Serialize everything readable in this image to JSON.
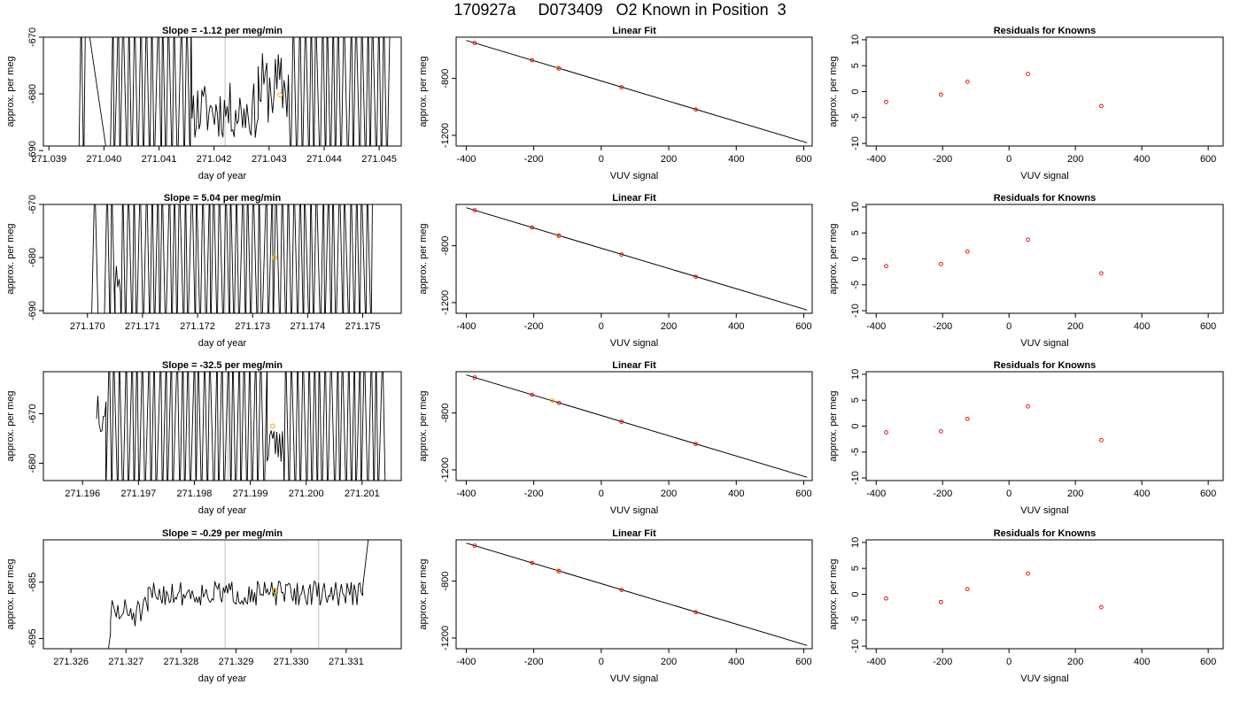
{
  "figure": {
    "title": "170927a     D073409   O2 Known in Position  3",
    "colors": {
      "trace": "#000000",
      "known_marker": "#ffa500",
      "residual_marker": "#dd0000",
      "axis": "#000000",
      "vline": "#bebebe"
    }
  },
  "chart_data": [
    {
      "type": "line",
      "row": 1,
      "col": 1,
      "title": "Slope =  -1.12  per meg/min",
      "xlabel": "day of year",
      "ylabel": "approx. per meg",
      "xlim": [
        271.0389,
        271.0454
      ],
      "ylim": [
        -689.2,
        -670
      ],
      "xticks": [
        271.039,
        271.04,
        271.041,
        271.042,
        271.043,
        271.044,
        271.045
      ],
      "xtick_labels": [
        "271.039",
        "271.040",
        "271.041",
        "271.042",
        "271.043",
        "271.044",
        "271.045"
      ],
      "yticks": [
        -670,
        -680,
        -690
      ],
      "ytick_labels": [
        "-670",
        "-680",
        "-690"
      ],
      "vlines": [
        271.0422
      ],
      "marker": {
        "x": 271.0432,
        "y": -680.2
      },
      "trace_seed": 11,
      "trace_segments": [
        {
          "x0": 271.03955,
          "x1": 271.03968,
          "mode": "spikes"
        },
        {
          "x0": 271.0401,
          "x1": 271.0416,
          "mode": "spikes"
        },
        {
          "x0": 271.0416,
          "x1": 271.0428,
          "mode": "wiggle",
          "base": -683.0,
          "amp": 5.0
        },
        {
          "x0": 271.0428,
          "x1": 271.04335,
          "mode": "wiggle",
          "base": -679.0,
          "amp": 6.5
        },
        {
          "x0": 271.0434,
          "x1": 271.0452,
          "mode": "spikes"
        }
      ]
    },
    {
      "type": "line",
      "row": 1,
      "col": 2,
      "title": "Linear Fit",
      "xlabel": "VUV signal",
      "ylabel": "approx. per meg",
      "xlim": [
        -430,
        625
      ],
      "ylim": [
        -1275,
        -510
      ],
      "xticks": [
        -400,
        -200,
        0,
        200,
        400,
        600
      ],
      "xtick_labels": [
        "-400",
        "-200",
        "0",
        "200",
        "400",
        "600"
      ],
      "yticks": [
        -800,
        -1200
      ],
      "ytick_labels": [
        "-800",
        "-1200"
      ],
      "fit_line": {
        "x": [
          -400,
          610
        ],
        "y": [
          -533,
          -1252
        ]
      },
      "points": [
        {
          "x": -375,
          "y": -551
        },
        {
          "x": -205,
          "y": -672
        },
        {
          "x": -125,
          "y": -730
        },
        {
          "x": 60,
          "y": -862
        },
        {
          "x": 280,
          "y": -1018
        }
      ],
      "highlight": {
        "x": -127,
        "y": -728
      }
    },
    {
      "type": "scatter",
      "row": 1,
      "col": 3,
      "title": "Residuals for Knowns",
      "xlabel": "VUV signal",
      "ylabel": "approx. per meg",
      "xlim": [
        -430,
        645
      ],
      "ylim": [
        -10.5,
        10.5
      ],
      "xticks": [
        -400,
        -200,
        0,
        200,
        400,
        600
      ],
      "xtick_labels": [
        "-400",
        "-200",
        "0",
        "200",
        "400",
        "600"
      ],
      "yticks": [
        -10,
        -5,
        0,
        5,
        10
      ],
      "ytick_labels": [
        "-10",
        "-5",
        "0",
        "5",
        "10"
      ],
      "points": [
        {
          "x": -370,
          "y": -2.0
        },
        {
          "x": -205,
          "y": -0.6
        },
        {
          "x": -125,
          "y": 1.9
        },
        {
          "x": 57,
          "y": 3.4
        },
        {
          "x": 278,
          "y": -2.8
        }
      ]
    },
    {
      "type": "line",
      "row": 2,
      "col": 1,
      "title": "Slope =  5.04  per meg/min",
      "xlabel": "day of year",
      "ylabel": "approx. per meg",
      "xlim": [
        271.1692,
        271.1757
      ],
      "ylim": [
        -690.5,
        -670
      ],
      "xticks": [
        271.17,
        271.171,
        271.172,
        271.173,
        271.174,
        271.175
      ],
      "xtick_labels": [
        "271.170",
        "271.171",
        "271.172",
        "271.173",
        "271.174",
        "271.175"
      ],
      "yticks": [
        -670,
        -680,
        -690
      ],
      "ytick_labels": [
        "-670",
        "-680",
        "-690"
      ],
      "vlines": [
        271.1725
      ],
      "marker": {
        "x": 271.1734,
        "y": -680
      },
      "trace_seed": 23,
      "trace_segments": [
        {
          "x0": 271.17008,
          "x1": 271.1702,
          "mode": "spikes"
        },
        {
          "x0": 271.1703,
          "x1": 271.1705,
          "mode": "spikes"
        },
        {
          "x0": 271.1705,
          "x1": 271.1706,
          "mode": "wiggle",
          "base": -684,
          "amp": 3
        },
        {
          "x0": 271.1706,
          "x1": 271.1752,
          "mode": "spikes"
        }
      ]
    },
    {
      "type": "line",
      "row": 2,
      "col": 2,
      "title": "Linear Fit",
      "xlabel": "VUV signal",
      "ylabel": "approx. per meg",
      "xlim": [
        -430,
        625
      ],
      "ylim": [
        -1275,
        -510
      ],
      "xticks": [
        -400,
        -200,
        0,
        200,
        400,
        600
      ],
      "xtick_labels": [
        "-400",
        "-200",
        "0",
        "200",
        "400",
        "600"
      ],
      "yticks": [
        -800,
        -1200
      ],
      "ytick_labels": [
        "-800",
        "-1200"
      ],
      "fit_line": {
        "x": [
          -400,
          610
        ],
        "y": [
          -533,
          -1252
        ]
      },
      "points": [
        {
          "x": -375,
          "y": -551
        },
        {
          "x": -205,
          "y": -672
        },
        {
          "x": -125,
          "y": -730
        },
        {
          "x": 60,
          "y": -862
        },
        {
          "x": 280,
          "y": -1018
        }
      ],
      "highlight": {
        "x": -127,
        "y": -728
      }
    },
    {
      "type": "scatter",
      "row": 2,
      "col": 3,
      "title": "Residuals for Knowns",
      "xlabel": "VUV signal",
      "ylabel": "approx. per meg",
      "xlim": [
        -430,
        645
      ],
      "ylim": [
        -10.5,
        10.5
      ],
      "xticks": [
        -400,
        -200,
        0,
        200,
        400,
        600
      ],
      "xtick_labels": [
        "-400",
        "-200",
        "0",
        "200",
        "400",
        "600"
      ],
      "yticks": [
        -10,
        -5,
        0,
        5,
        10
      ],
      "ytick_labels": [
        "-10",
        "-5",
        "0",
        "5",
        "10"
      ],
      "points": [
        {
          "x": -370,
          "y": -1.4
        },
        {
          "x": -205,
          "y": -1.0
        },
        {
          "x": -125,
          "y": 1.4
        },
        {
          "x": 57,
          "y": 3.7
        },
        {
          "x": 278,
          "y": -2.8
        }
      ]
    },
    {
      "type": "line",
      "row": 3,
      "col": 1,
      "title": "Slope =  -32.5  per meg/min",
      "xlabel": "day of year",
      "ylabel": "approx. per meg",
      "xlim": [
        271.1953,
        271.2017
      ],
      "ylim": [
        -683.5,
        -661.5
      ],
      "xticks": [
        271.196,
        271.197,
        271.198,
        271.199,
        271.2,
        271.201
      ],
      "xtick_labels": [
        "271.196",
        "271.197",
        "271.198",
        "271.199",
        "271.200",
        "271.201"
      ],
      "yticks": [
        -670,
        -680
      ],
      "ytick_labels": [
        "-670",
        "-680"
      ],
      "vlines": [
        271.1986
      ],
      "marker": {
        "x": 271.1994,
        "y": -672.5
      },
      "trace_seed": 37,
      "trace_segments": [
        {
          "x0": 271.19625,
          "x1": 271.19642,
          "mode": "wiggle",
          "base": -668,
          "amp": 6
        },
        {
          "x0": 271.19642,
          "x1": 271.1993,
          "mode": "spikes"
        },
        {
          "x0": 271.1993,
          "x1": 271.1996,
          "mode": "wiggle",
          "base": -677,
          "amp": 4
        },
        {
          "x0": 271.1996,
          "x1": 271.2014,
          "mode": "spikes"
        }
      ]
    },
    {
      "type": "line",
      "row": 3,
      "col": 2,
      "title": "Linear Fit",
      "xlabel": "VUV signal",
      "ylabel": "approx. per meg",
      "xlim": [
        -430,
        625
      ],
      "ylim": [
        -1275,
        -510
      ],
      "xticks": [
        -400,
        -200,
        0,
        200,
        400,
        600
      ],
      "xtick_labels": [
        "-400",
        "-200",
        "0",
        "200",
        "400",
        "600"
      ],
      "yticks": [
        -800,
        -1200
      ],
      "ytick_labels": [
        "-800",
        "-1200"
      ],
      "fit_line": {
        "x": [
          -400,
          610
        ],
        "y": [
          -533,
          -1252
        ]
      },
      "points": [
        {
          "x": -375,
          "y": -551
        },
        {
          "x": -205,
          "y": -672
        },
        {
          "x": -125,
          "y": -730
        },
        {
          "x": 60,
          "y": -862
        },
        {
          "x": 280,
          "y": -1018
        }
      ],
      "highlight": {
        "x": -145,
        "y": -712
      }
    },
    {
      "type": "scatter",
      "row": 3,
      "col": 3,
      "title": "Residuals for Knowns",
      "xlabel": "VUV signal",
      "ylabel": "approx. per meg",
      "xlim": [
        -430,
        645
      ],
      "ylim": [
        -10.5,
        10.5
      ],
      "xticks": [
        -400,
        -200,
        0,
        200,
        400,
        600
      ],
      "xtick_labels": [
        "-400",
        "-200",
        "0",
        "200",
        "400",
        "600"
      ],
      "yticks": [
        -10,
        -5,
        0,
        5,
        10
      ],
      "ytick_labels": [
        "-10",
        "-5",
        "0",
        "5",
        "10"
      ],
      "points": [
        {
          "x": -370,
          "y": -1.2
        },
        {
          "x": -205,
          "y": -1.0
        },
        {
          "x": -125,
          "y": 1.4
        },
        {
          "x": 57,
          "y": 3.8
        },
        {
          "x": 278,
          "y": -2.7
        }
      ]
    },
    {
      "type": "line",
      "row": 4,
      "col": 1,
      "title": "Slope =  -0.29  per meg/min",
      "xlabel": "day of year",
      "ylabel": "approx. per meg",
      "xlim": [
        271.3255,
        271.332
      ],
      "ylim": [
        -696.8,
        -677.5
      ],
      "xticks": [
        271.326,
        271.327,
        271.328,
        271.329,
        271.33,
        271.331
      ],
      "xtick_labels": [
        "271.326",
        "271.327",
        "271.328",
        "271.329",
        "271.330",
        "271.331"
      ],
      "yticks": [
        -685,
        -695
      ],
      "ytick_labels": [
        "-685",
        "-695"
      ],
      "vlines": [
        271.3288,
        271.3305
      ],
      "marker": {
        "x": 271.3297,
        "y": -686.5
      },
      "trace_seed": 51,
      "trace_segments": [
        {
          "x0": 271.32668,
          "x1": 271.32672,
          "mode": "ramp",
          "y0": -697,
          "y1": -694
        },
        {
          "x0": 271.32672,
          "x1": 271.3274,
          "mode": "wiggle",
          "base": -690.5,
          "amp": 2.8
        },
        {
          "x0": 271.3274,
          "x1": 271.3313,
          "mode": "wiggle",
          "base": -687.0,
          "amp": 2.2
        },
        {
          "x0": 271.3313,
          "x1": 271.3314,
          "mode": "ramp",
          "y0": -686,
          "y1": -677.5
        }
      ]
    },
    {
      "type": "line",
      "row": 4,
      "col": 2,
      "title": "Linear Fit",
      "xlabel": "VUV signal",
      "ylabel": "approx. per meg",
      "xlim": [
        -430,
        625
      ],
      "ylim": [
        -1275,
        -510
      ],
      "xticks": [
        -400,
        -200,
        0,
        200,
        400,
        600
      ],
      "xtick_labels": [
        "-400",
        "-200",
        "0",
        "200",
        "400",
        "600"
      ],
      "yticks": [
        -800,
        -1200
      ],
      "ytick_labels": [
        "-800",
        "-1200"
      ],
      "fit_line": {
        "x": [
          -400,
          610
        ],
        "y": [
          -533,
          -1252
        ]
      },
      "points": [
        {
          "x": -375,
          "y": -551
        },
        {
          "x": -205,
          "y": -672
        },
        {
          "x": -125,
          "y": -730
        },
        {
          "x": 60,
          "y": -862
        },
        {
          "x": 280,
          "y": -1018
        }
      ],
      "highlight": {
        "x": -127,
        "y": -728
      }
    },
    {
      "type": "scatter",
      "row": 4,
      "col": 3,
      "title": "Residuals for Knowns",
      "xlabel": "VUV signal",
      "ylabel": "approx. per meg",
      "xlim": [
        -430,
        645
      ],
      "ylim": [
        -10.5,
        10.5
      ],
      "xticks": [
        -400,
        -200,
        0,
        200,
        400,
        600
      ],
      "xtick_labels": [
        "-400",
        "-200",
        "0",
        "200",
        "400",
        "600"
      ],
      "yticks": [
        -10,
        -5,
        0,
        5,
        10
      ],
      "ytick_labels": [
        "-10",
        "-5",
        "0",
        "5",
        "10"
      ],
      "points": [
        {
          "x": -370,
          "y": -0.8
        },
        {
          "x": -205,
          "y": -1.5
        },
        {
          "x": -125,
          "y": 1.0
        },
        {
          "x": 57,
          "y": 4.0
        },
        {
          "x": 278,
          "y": -2.5
        }
      ]
    }
  ]
}
